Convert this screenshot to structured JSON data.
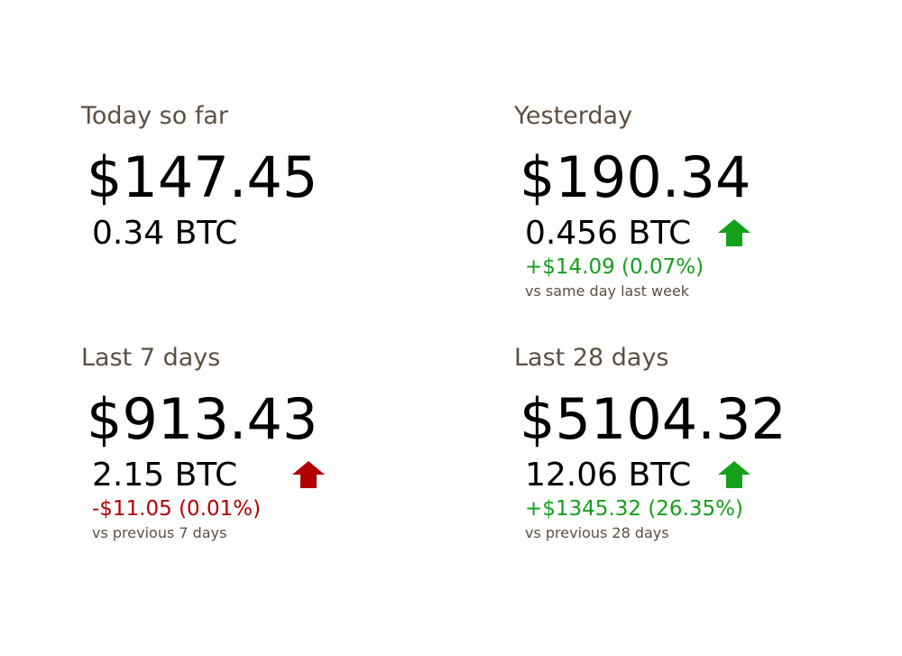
{
  "colors": {
    "label": "#5c5042",
    "positive": "#14a01a",
    "negative": "#b20000"
  },
  "cards": [
    {
      "title": "Today so far",
      "usd": "$147.45",
      "btc": "0.34 BTC"
    },
    {
      "title": "Yesterday",
      "usd": "$190.34",
      "btc": "0.456 BTC",
      "trend_icon": "up-arrow-icon",
      "trend_color": "#14a01a",
      "change": "+$14.09 (0.07%)",
      "compare": "vs same day last week"
    },
    {
      "title": "Last 7 days",
      "usd": "$913.43",
      "btc": "2.15 BTC",
      "trend_icon": "up-arrow-icon",
      "trend_color": "#b20000",
      "change": "-$11.05 (0.01%)",
      "compare": "vs previous 7 days"
    },
    {
      "title": "Last 28 days",
      "usd": "$5104.32",
      "btc": "12.06 BTC",
      "trend_icon": "up-arrow-icon",
      "trend_color": "#14a01a",
      "change": "+$1345.32 (26.35%)",
      "compare": "vs previous 28 days"
    }
  ]
}
